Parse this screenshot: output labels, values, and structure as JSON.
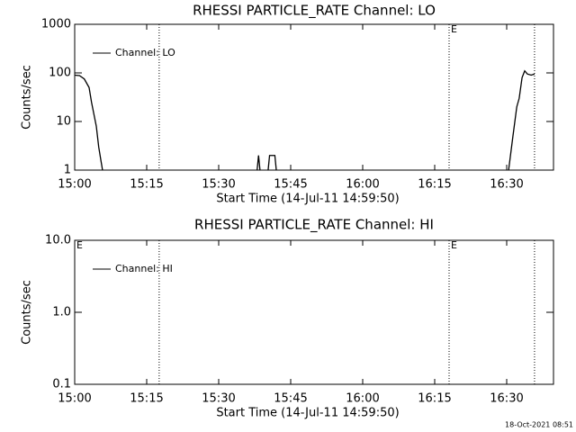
{
  "chart_data": [
    {
      "type": "line",
      "title": "RHESSI PARTICLE_RATE Channel: LO",
      "x_label": "Start Time (14-Jul-11 14:59:50)",
      "y_label": "Counts/sec",
      "log_y": true,
      "ylim": [
        1,
        1000
      ],
      "yticks": [
        1,
        10,
        100,
        1000
      ],
      "xlim": [
        0,
        99.75
      ],
      "xticks": [
        {
          "value": 0,
          "label": "15:00"
        },
        {
          "value": 15,
          "label": "15:15"
        },
        {
          "value": 30,
          "label": "15:30"
        },
        {
          "value": 45,
          "label": "15:45"
        },
        {
          "value": 60,
          "label": "16:00"
        },
        {
          "value": 75,
          "label": "16:15"
        },
        {
          "value": 90,
          "label": "16:30"
        }
      ],
      "vlines": [
        17.6,
        78,
        95.8
      ],
      "annotations": [
        {
          "text": "E",
          "x": 78
        }
      ],
      "legend": "top-left",
      "series": [
        {
          "name": "Channel: LO",
          "color": "#000000",
          "x": [
            0,
            1,
            2,
            3,
            3.5,
            4.5,
            5,
            5.5,
            5.8,
            null,
            38,
            38.3,
            38.6,
            null,
            40.3,
            40.6,
            41.7,
            42,
            null,
            90.4,
            91.3,
            92.1,
            92.6,
            93.2,
            93.75,
            94.3,
            95.1,
            95.8
          ],
          "values": [
            90,
            88,
            75,
            50,
            25,
            8,
            3,
            1.5,
            1,
            null,
            1,
            2,
            1,
            null,
            1,
            2,
            2,
            1,
            null,
            1,
            5,
            20,
            30,
            80,
            110,
            95,
            90,
            95
          ]
        }
      ]
    },
    {
      "type": "line",
      "title": "RHESSI PARTICLE_RATE Channel: HI",
      "x_label": "Start Time (14-Jul-11 14:59:50)",
      "y_label": "Counts/sec",
      "log_y": true,
      "ylim": [
        0.1,
        10
      ],
      "yticks": [
        0.1,
        {
          "value": 1,
          "label": "1.0"
        },
        {
          "value": 10,
          "label": "10.0"
        }
      ],
      "xlim": [
        0,
        99.75
      ],
      "xticks": [
        {
          "value": 0,
          "label": "15:00"
        },
        {
          "value": 15,
          "label": "15:15"
        },
        {
          "value": 30,
          "label": "15:30"
        },
        {
          "value": 45,
          "label": "15:45"
        },
        {
          "value": 60,
          "label": "16:00"
        },
        {
          "value": 75,
          "label": "16:15"
        },
        {
          "value": 90,
          "label": "16:30"
        }
      ],
      "vlines": [
        17.6,
        78,
        95.8
      ],
      "annotations": [
        {
          "text": "E",
          "x": 0
        },
        {
          "text": "E",
          "x": 78
        }
      ],
      "legend": "top-left",
      "series": [
        {
          "name": "Channel: HI",
          "color": "#000000",
          "x": [],
          "values": []
        }
      ]
    }
  ],
  "footer": "18-Oct-2021 08:51"
}
